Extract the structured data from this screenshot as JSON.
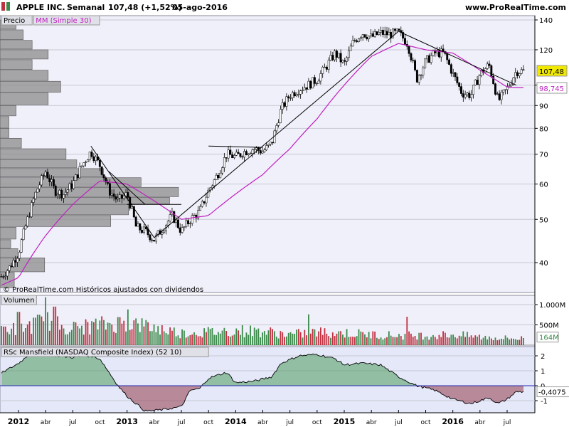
{
  "header": {
    "symbol": "APPLE INC.",
    "period": "Semanal",
    "last": "107,48 (+1,52%)",
    "date": "05-ago-2016",
    "site": "www.ProRealTime.com"
  },
  "colors": {
    "price_bg": "#f0f0fa",
    "ma": "#c020c0",
    "rs_pos": "#4e9a5e",
    "rs_neg": "#9a4a5a",
    "vol_up": "#3a8a4a",
    "vol_down": "#c03040"
  },
  "icons": [
    "chart-icon",
    "candles-icon"
  ],
  "chart_data": [
    {
      "type": "candlestick",
      "panel": "price",
      "legend": [
        "Precio",
        "MM (Simple 30)"
      ],
      "y_scale": "log",
      "ylim": [
        34,
        143
      ],
      "y_ticks": [
        40,
        50,
        60,
        70,
        80,
        90,
        100,
        120,
        140
      ],
      "y_tick_labels": [
        "40",
        "50",
        "60",
        "70",
        "80",
        "90",
        "100",
        "120",
        "140"
      ],
      "last_price_label": "107,48",
      "ma_label": "98,745",
      "copyright": "© ProRealTime.com  Históricos ajustados con dividendos",
      "x_ticks": [
        {
          "date": "2012-01",
          "label": "2012",
          "bold": true
        },
        {
          "date": "2012-04",
          "label": "abr"
        },
        {
          "date": "2012-07",
          "label": "jul"
        },
        {
          "date": "2012-10",
          "label": "oct"
        },
        {
          "date": "2013-01",
          "label": "2013",
          "bold": true
        },
        {
          "date": "2013-04",
          "label": "abr"
        },
        {
          "date": "2013-07",
          "label": "jul"
        },
        {
          "date": "2013-10",
          "label": "oct"
        },
        {
          "date": "2014-01",
          "label": "2014",
          "bold": true
        },
        {
          "date": "2014-04",
          "label": "abr"
        },
        {
          "date": "2014-07",
          "label": "jul"
        },
        {
          "date": "2014-10",
          "label": "oct"
        },
        {
          "date": "2015-01",
          "label": "2015",
          "bold": true
        },
        {
          "date": "2015-04",
          "label": "abr"
        },
        {
          "date": "2015-07",
          "label": "jul"
        },
        {
          "date": "2015-10",
          "label": "oct"
        },
        {
          "date": "2016-01",
          "label": "2016",
          "bold": true
        },
        {
          "date": "2016-04",
          "label": "abr"
        },
        {
          "date": "2016-07",
          "label": "jul"
        }
      ],
      "price_path": [
        [
          "2011-09",
          38
        ],
        [
          "2011-10",
          36
        ],
        [
          "2011-11",
          37
        ],
        [
          "2011-12",
          39
        ],
        [
          "2012-01",
          42
        ],
        [
          "2012-02",
          50
        ],
        [
          "2012-03",
          58
        ],
        [
          "2012-04",
          64
        ],
        [
          "2012-05",
          58
        ],
        [
          "2012-06",
          57
        ],
        [
          "2012-07",
          60
        ],
        [
          "2012-08",
          66
        ],
        [
          "2012-09",
          71
        ],
        [
          "2012-10",
          66
        ],
        [
          "2012-11",
          58
        ],
        [
          "2012-12",
          55
        ],
        [
          "2013-01",
          57
        ],
        [
          "2013-02",
          48
        ],
        [
          "2013-03",
          47
        ],
        [
          "2013-04",
          45
        ],
        [
          "2013-05",
          48
        ],
        [
          "2013-06",
          51
        ],
        [
          "2013-07",
          47
        ],
        [
          "2013-08",
          50
        ],
        [
          "2013-09",
          52
        ],
        [
          "2013-10",
          58
        ],
        [
          "2013-11",
          63
        ],
        [
          "2013-12",
          70
        ],
        [
          "2014-01",
          69
        ],
        [
          "2014-02",
          71
        ],
        [
          "2014-03",
          72
        ],
        [
          "2014-04",
          71
        ],
        [
          "2014-05",
          74
        ],
        [
          "2014-06",
          88
        ],
        [
          "2014-07",
          95
        ],
        [
          "2014-08",
          98
        ],
        [
          "2014-09",
          100
        ],
        [
          "2014-10",
          103
        ],
        [
          "2014-11",
          110
        ],
        [
          "2014-12",
          118
        ],
        [
          "2015-01",
          111
        ],
        [
          "2015-02",
          125
        ],
        [
          "2015-03",
          131
        ],
        [
          "2015-04",
          128
        ],
        [
          "2015-05",
          131
        ],
        [
          "2015-06",
          130
        ],
        [
          "2015-07",
          131
        ],
        [
          "2015-08",
          124
        ],
        [
          "2015-09",
          103
        ],
        [
          "2015-10",
          113
        ],
        [
          "2015-11",
          118
        ],
        [
          "2015-12",
          118
        ],
        [
          "2016-01",
          106
        ],
        [
          "2016-02",
          96
        ],
        [
          "2016-03",
          95
        ],
        [
          "2016-04",
          106
        ],
        [
          "2016-05",
          111
        ],
        [
          "2016-06",
          92
        ],
        [
          "2016-07",
          98
        ],
        [
          "2016-08",
          107.48
        ]
      ],
      "ma_path": [
        [
          "2011-09",
          34
        ],
        [
          "2012-01",
          37
        ],
        [
          "2012-04",
          46
        ],
        [
          "2012-07",
          54
        ],
        [
          "2012-10",
          61
        ],
        [
          "2013-01",
          60
        ],
        [
          "2013-04",
          55
        ],
        [
          "2013-07",
          50
        ],
        [
          "2013-10",
          51
        ],
        [
          "2014-01",
          57
        ],
        [
          "2014-04",
          63
        ],
        [
          "2014-07",
          72
        ],
        [
          "2014-10",
          84
        ],
        [
          "2015-01",
          100
        ],
        [
          "2015-04",
          116
        ],
        [
          "2015-07",
          124
        ],
        [
          "2015-10",
          120
        ],
        [
          "2016-01",
          118
        ],
        [
          "2016-04",
          108
        ],
        [
          "2016-07",
          99
        ],
        [
          "2016-08",
          98.745
        ]
      ],
      "trendlines": [
        [
          [
            "2012-09",
            73
          ],
          [
            "2013-04",
            45.5
          ]
        ],
        [
          [
            "2013-04",
            45.5
          ],
          [
            "2015-07",
            132
          ]
        ],
        [
          [
            "2015-07",
            132
          ],
          [
            "2016-08",
            100
          ]
        ],
        [
          [
            "2013-10",
            73
          ],
          [
            "2014-04",
            72.5
          ]
        ],
        [
          [
            "2012-11",
            64
          ],
          [
            "2013-03",
            54
          ]
        ],
        [
          [
            "2013-01",
            54
          ],
          [
            "2013-07",
            54
          ]
        ]
      ],
      "volume_profile": {
        "bins": [
          [
            35,
            38,
            0.08
          ],
          [
            38,
            41,
            0.25
          ],
          [
            41,
            43,
            0.1
          ],
          [
            43,
            45,
            0.06
          ],
          [
            45,
            48,
            0.09
          ],
          [
            48,
            51,
            0.62
          ],
          [
            51,
            54,
            0.72
          ],
          [
            54,
            56,
            0.95
          ],
          [
            56,
            59,
            1.0
          ],
          [
            59,
            62,
            0.79
          ],
          [
            62,
            65,
            0.58
          ],
          [
            65,
            68,
            0.43
          ],
          [
            68,
            72,
            0.37
          ],
          [
            72,
            76,
            0.12
          ],
          [
            76,
            80,
            0.05
          ],
          [
            80,
            85,
            0.05
          ],
          [
            85,
            90,
            0.09
          ],
          [
            90,
            96,
            0.27
          ],
          [
            96,
            102,
            0.34
          ],
          [
            102,
            108,
            0.27
          ],
          [
            108,
            114,
            0.18
          ],
          [
            114,
            120,
            0.27
          ],
          [
            120,
            126,
            0.18
          ],
          [
            126,
            133,
            0.13
          ],
          [
            133,
            140,
            0.09
          ]
        ]
      }
    },
    {
      "type": "bar",
      "panel": "volume",
      "legend": [
        "Volumen"
      ],
      "y_ticks": [
        500,
        1000
      ],
      "y_tick_labels": [
        "500M",
        "1.000M"
      ],
      "last_label": "164M",
      "volume_path": [
        [
          "2011-09",
          450
        ],
        [
          "2012-01",
          400
        ],
        [
          "2012-04",
          600
        ],
        [
          "2012-07",
          420
        ],
        [
          "2012-10",
          500
        ],
        [
          "2013-01",
          560
        ],
        [
          "2013-04",
          430
        ],
        [
          "2013-07",
          300
        ],
        [
          "2013-10",
          320
        ],
        [
          "2014-01",
          360
        ],
        [
          "2014-04",
          340
        ],
        [
          "2014-07",
          260
        ],
        [
          "2014-10",
          320
        ],
        [
          "2015-01",
          300
        ],
        [
          "2015-04",
          260
        ],
        [
          "2015-07",
          240
        ],
        [
          "2015-10",
          240
        ],
        [
          "2016-01",
          260
        ],
        [
          "2016-04",
          200
        ],
        [
          "2016-07",
          170
        ],
        [
          "2016-08",
          164
        ]
      ],
      "spikes": [
        [
          "2012-04",
          1180
        ],
        [
          "2012-05",
          950
        ],
        [
          "2012-01",
          820
        ],
        [
          "2013-01",
          880
        ],
        [
          "2014-09",
          760
        ],
        [
          "2015-08",
          700
        ]
      ]
    },
    {
      "type": "area",
      "panel": "rs_mansfield",
      "legend": [
        "RSc Mansfield (NASDAQ Composite Index) (52 10)"
      ],
      "ylim": [
        -1.7,
        2.5
      ],
      "y_ticks": [
        -1,
        0,
        1,
        2
      ],
      "y_tick_labels": [
        "-1",
        "0",
        "1",
        "2"
      ],
      "last_label": "-0,4075",
      "rs_path": [
        [
          "2011-09",
          1.3
        ],
        [
          "2011-11",
          0.8
        ],
        [
          "2012-01",
          1.5
        ],
        [
          "2012-03",
          2.5
        ],
        [
          "2012-05",
          2.0
        ],
        [
          "2012-07",
          1.9
        ],
        [
          "2012-09",
          2.0
        ],
        [
          "2012-10",
          1.8
        ],
        [
          "2012-11",
          0.9
        ],
        [
          "2012-12",
          0.0
        ],
        [
          "2013-01",
          -0.7
        ],
        [
          "2013-03",
          -1.7
        ],
        [
          "2013-05",
          -1.6
        ],
        [
          "2013-07",
          -1.4
        ],
        [
          "2013-08",
          -0.3
        ],
        [
          "2013-09",
          -0.2
        ],
        [
          "2013-10",
          0.5
        ],
        [
          "2013-12",
          0.9
        ],
        [
          "2014-01",
          0.2
        ],
        [
          "2014-03",
          0.3
        ],
        [
          "2014-05",
          0.6
        ],
        [
          "2014-06",
          1.5
        ],
        [
          "2014-08",
          2.0
        ],
        [
          "2014-10",
          2.1
        ],
        [
          "2014-12",
          1.8
        ],
        [
          "2015-01",
          1.4
        ],
        [
          "2015-03",
          1.5
        ],
        [
          "2015-05",
          1.4
        ],
        [
          "2015-07",
          0.6
        ],
        [
          "2015-09",
          0.0
        ],
        [
          "2015-11",
          -0.3
        ],
        [
          "2016-01",
          -0.9
        ],
        [
          "2016-03",
          -1.2
        ],
        [
          "2016-05",
          -0.8
        ],
        [
          "2016-06",
          -1.2
        ],
        [
          "2016-07",
          -0.9
        ],
        [
          "2016-08",
          -0.4075
        ]
      ]
    }
  ]
}
